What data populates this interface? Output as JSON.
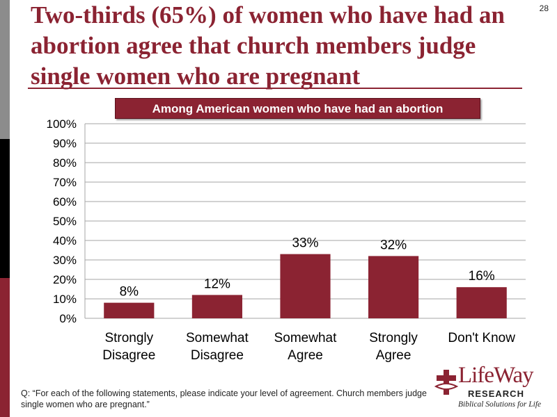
{
  "slide": {
    "title": "Two-thirds (65%) of women who have had an abortion agree that church members judge single women who are pregnant",
    "page_number": "28",
    "footnote": "Q: “For each of the following statements, please indicate your level of agreement. Church members judge single women who are pregnant.”"
  },
  "logo": {
    "name": "LifeWay",
    "research": "RESEARCH",
    "tagline": "Biblical Solutions for Life"
  },
  "colors": {
    "brand": "#8b2332",
    "gridline": "#a6a6a6",
    "text": "#000000"
  },
  "chart_data": {
    "type": "bar",
    "subtitle": "Among American women who have had an abortion",
    "categories": [
      [
        "Strongly",
        "Disagree"
      ],
      [
        "Somewhat",
        "Disagree"
      ],
      [
        "Somewhat",
        "Agree"
      ],
      [
        "Strongly",
        "Agree"
      ],
      [
        "Don't Know"
      ]
    ],
    "values": [
      8,
      12,
      33,
      32,
      16
    ],
    "data_labels": [
      "8%",
      "12%",
      "33%",
      "32%",
      "16%"
    ],
    "ylim": [
      0,
      100
    ],
    "yticks": [
      0,
      10,
      20,
      30,
      40,
      50,
      60,
      70,
      80,
      90,
      100
    ],
    "ytick_labels": [
      "0%",
      "10%",
      "20%",
      "30%",
      "40%",
      "50%",
      "60%",
      "70%",
      "80%",
      "90%",
      "100%"
    ],
    "grid": true,
    "xlabel": "",
    "ylabel": ""
  }
}
